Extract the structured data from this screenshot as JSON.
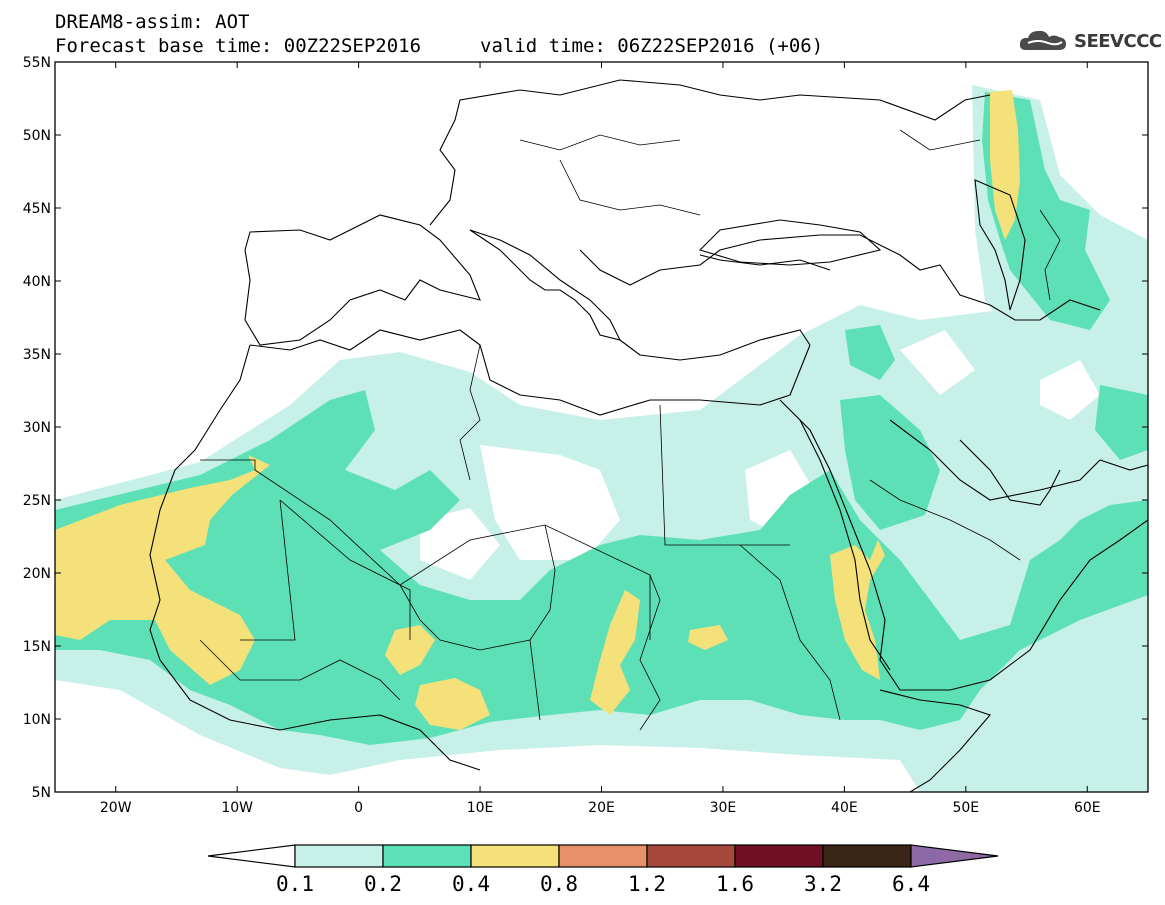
{
  "header": {
    "title_line1": "DREAM8-assim: AOT",
    "title_line2a": "Forecast base time: 00Z22SEP2016",
    "title_line2b": "valid time: 06Z22SEP2016 (+06)",
    "logo_text": "SEEVCCC"
  },
  "map": {
    "projection": "lat-lon",
    "lon_range": [
      -25,
      65
    ],
    "lat_range": [
      5,
      55
    ],
    "lat_ticks": [
      "5N",
      "10N",
      "15N",
      "20N",
      "25N",
      "30N",
      "35N",
      "40N",
      "45N",
      "50N",
      "55N"
    ],
    "lon_ticks": [
      "20W",
      "10W",
      "0",
      "10E",
      "20E",
      "30E",
      "40E",
      "50E",
      "60E"
    ],
    "coastline_color": "#000000"
  },
  "colorbar": {
    "thresholds": [
      "0.1",
      "0.2",
      "0.4",
      "0.8",
      "1.2",
      "1.6",
      "3.2",
      "6.4"
    ],
    "colors": [
      "#c7f0e9",
      "#5ee0b6",
      "#f4e17a",
      "#e8906a",
      "#a6483a",
      "#6e0f26",
      "#3a2516",
      "#8d6aa6"
    ],
    "under_color": "#ffffff"
  }
}
